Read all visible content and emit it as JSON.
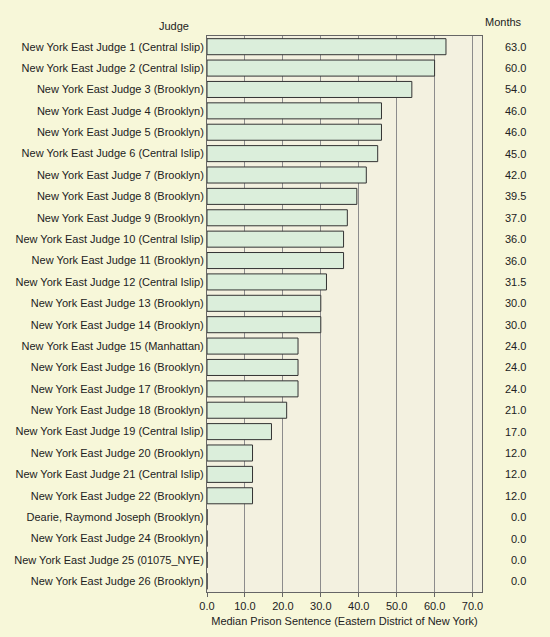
{
  "chart_data": {
    "type": "bar",
    "orientation": "horizontal",
    "xlabel": "Median Prison Sentence (Eastern District of New York)",
    "ylabel": "Judge",
    "annotations": [
      {
        "text": "Months"
      }
    ],
    "categories": [
      "New York East Judge 1 (Central Islip)",
      "New York East Judge 2 (Central Islip)",
      "New York East Judge 3 (Brooklyn)",
      "New York East Judge 4 (Brooklyn)",
      "New York East Judge 5 (Brooklyn)",
      "New York East Judge 6 (Central Islip)",
      "New York East Judge 7 (Brooklyn)",
      "New York East Judge 8 (Brooklyn)",
      "New York East Judge 9 (Brooklyn)",
      "New York East Judge 10 (Central Islip)",
      "New York East Judge 11 (Brooklyn)",
      "New York East Judge 12 (Central Islip)",
      "New York East Judge 13 (Brooklyn)",
      "New York East Judge 14 (Brooklyn)",
      "New York East Judge 15 (Manhattan)",
      "New York East Judge 16 (Brooklyn)",
      "New York East Judge 17 (Brooklyn)",
      "New York East Judge 18 (Brooklyn)",
      "New York East Judge 19 (Central Islip)",
      "New York East Judge 20 (Brooklyn)",
      "New York East Judge 21 (Central Islip)",
      "New York East Judge 22 (Brooklyn)",
      "Dearie, Raymond Joseph (Brooklyn)",
      "New York East Judge 24 (Brooklyn)",
      "New York East Judge 25 (01075_NYE)",
      "New York East Judge 26 (Brooklyn)"
    ],
    "values": [
      63,
      60,
      54,
      46,
      46,
      45,
      42,
      39.5,
      37,
      36,
      36,
      31.5,
      30,
      30,
      24,
      24,
      24,
      21,
      17,
      12,
      12,
      12,
      0,
      0,
      0,
      0
    ],
    "value_labels": [
      "63.0",
      "60.0",
      "54.0",
      "46.0",
      "46.0",
      "45.0",
      "42.0",
      "39.5",
      "37.0",
      "36.0",
      "36.0",
      "31.5",
      "30.0",
      "30.0",
      "24.0",
      "24.0",
      "24.0",
      "21.0",
      "17.0",
      "12.0",
      "12.0",
      "12.0",
      "0.0",
      "0.0",
      "0.0",
      "0.0"
    ],
    "data_labels": true,
    "color": "#dbeedb",
    "xlim": [
      0,
      72.5
    ],
    "xticks": [
      {
        "value": 0,
        "label": "0.0"
      },
      {
        "value": 10,
        "label": "10.0"
      },
      {
        "value": 20,
        "label": "20.0"
      },
      {
        "value": 30,
        "label": "30.0"
      },
      {
        "value": 40,
        "label": "40.0"
      },
      {
        "value": 50,
        "label": "50.0"
      },
      {
        "value": 60,
        "label": "60.0"
      },
      {
        "value": 70,
        "label": "70.0"
      }
    ],
    "grid": true
  }
}
